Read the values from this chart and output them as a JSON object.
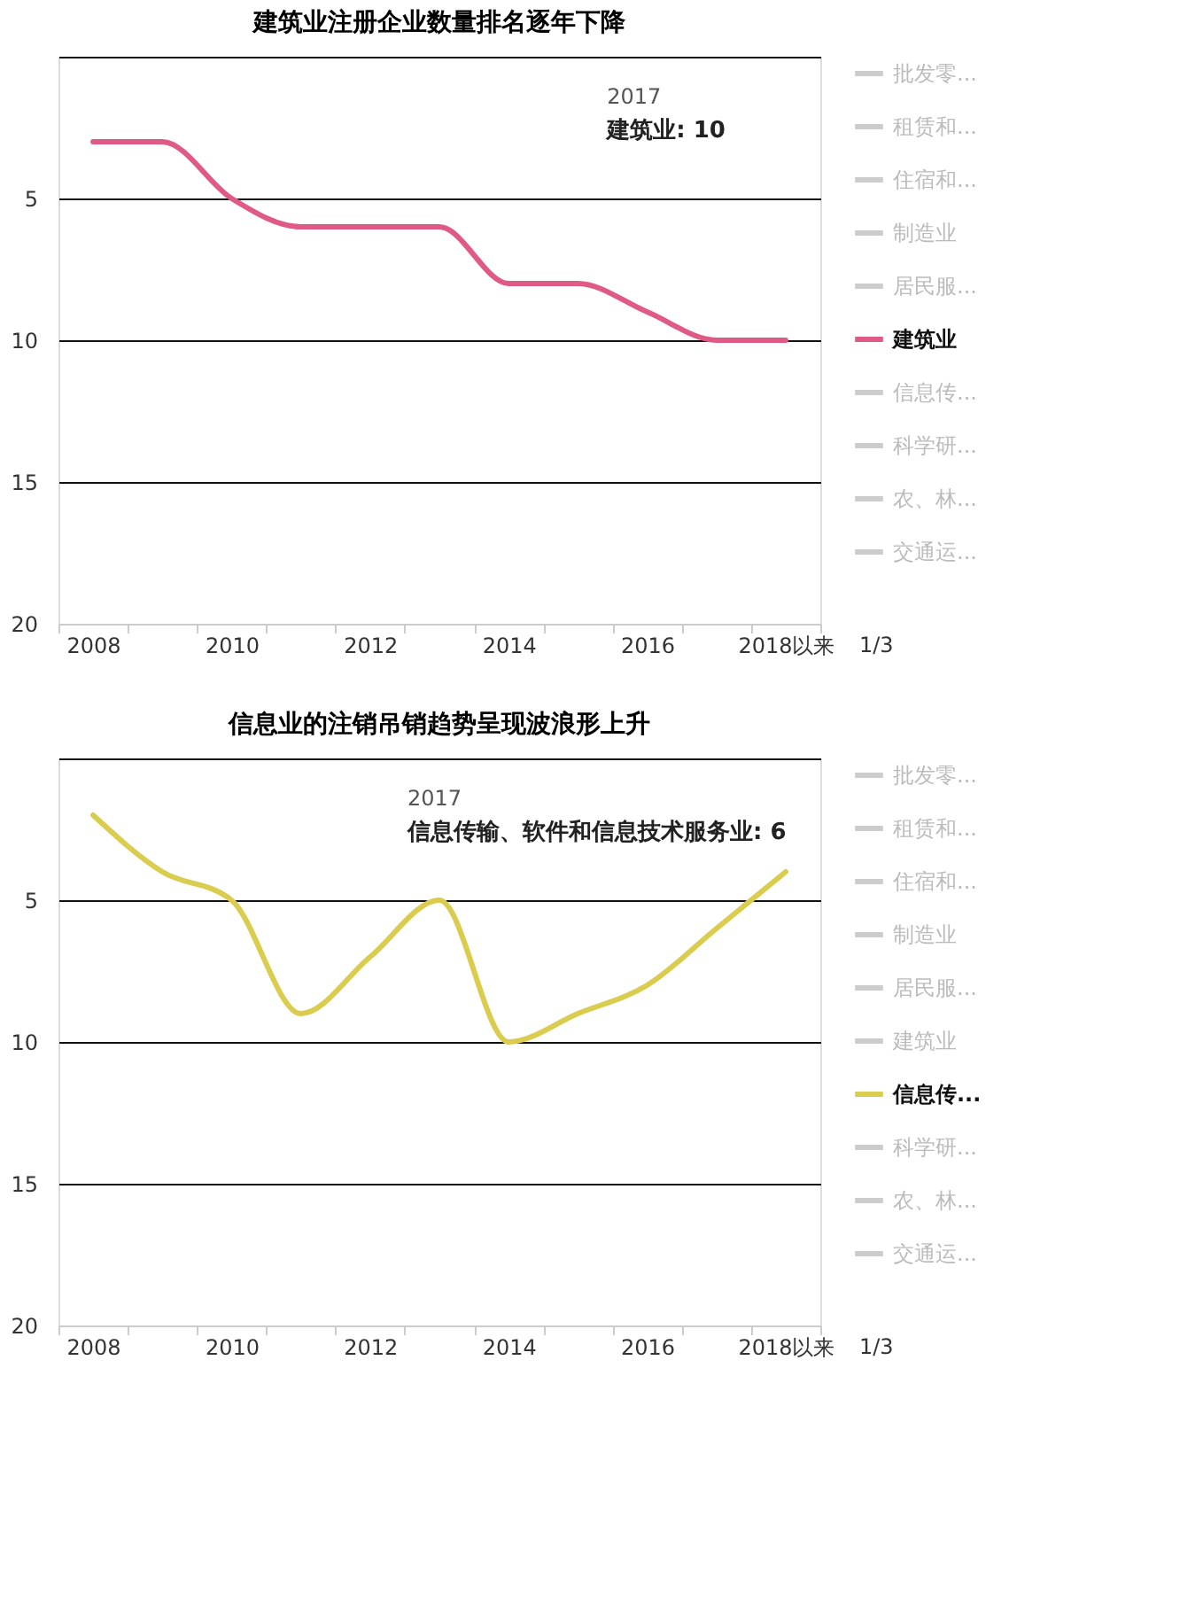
{
  "chart_data": [
    {
      "type": "line",
      "title": "建筑业注册企业数量排名逐年下降",
      "categories": [
        "2008",
        null,
        "2010",
        null,
        "2012",
        null,
        "2014",
        null,
        "2016",
        null,
        "2018以来"
      ],
      "series": [
        {
          "name": "批发零...",
          "color": "#cccccc",
          "values": [
            null,
            null,
            null,
            null,
            null,
            null,
            null,
            null,
            null,
            null,
            null
          ]
        },
        {
          "name": "租赁和...",
          "color": "#cccccc",
          "values": [
            null,
            null,
            null,
            null,
            null,
            null,
            null,
            null,
            null,
            null,
            null
          ]
        },
        {
          "name": "住宿和...",
          "color": "#cccccc",
          "values": [
            null,
            null,
            null,
            null,
            null,
            null,
            null,
            null,
            null,
            null,
            null
          ]
        },
        {
          "name": "制造业",
          "color": "#cccccc",
          "values": [
            null,
            null,
            null,
            null,
            null,
            null,
            null,
            null,
            null,
            null,
            null
          ]
        },
        {
          "name": "居民服...",
          "color": "#cccccc",
          "values": [
            null,
            null,
            null,
            null,
            null,
            null,
            null,
            null,
            null,
            null,
            null
          ]
        },
        {
          "name": "建筑业",
          "color": "#e05a86",
          "values": [
            3,
            3,
            5,
            6,
            6,
            6,
            8,
            8,
            9,
            10,
            10
          ]
        },
        {
          "name": "信息传...",
          "color": "#cccccc",
          "values": [
            null,
            null,
            null,
            null,
            null,
            null,
            null,
            null,
            null,
            null,
            null
          ]
        },
        {
          "name": "科学研...",
          "color": "#cccccc",
          "values": [
            null,
            null,
            null,
            null,
            null,
            null,
            null,
            null,
            null,
            null,
            null
          ]
        },
        {
          "name": "农、林...",
          "color": "#cccccc",
          "values": [
            null,
            null,
            null,
            null,
            null,
            null,
            null,
            null,
            null,
            null,
            null
          ]
        },
        {
          "name": "交通运...",
          "color": "#cccccc",
          "values": [
            null,
            null,
            null,
            null,
            null,
            null,
            null,
            null,
            null,
            null,
            null
          ]
        }
      ],
      "ylim": [
        20,
        0
      ],
      "yticks": [
        {
          "value": 0,
          "label": null
        },
        5,
        10,
        15,
        20
      ],
      "grid": "y",
      "legend": "right",
      "annotations": [
        "2017",
        "建筑业: 10",
        "1/3"
      ]
    },
    {
      "type": "line",
      "title": "信息业的注销吊销趋势呈现波浪形上升",
      "categories": [
        "2008",
        null,
        "2010",
        null,
        "2012",
        null,
        "2014",
        null,
        "2016",
        null,
        "2018以来"
      ],
      "series": [
        {
          "name": "批发零...",
          "color": "#cccccc",
          "values": [
            null,
            null,
            null,
            null,
            null,
            null,
            null,
            null,
            null,
            null,
            null
          ]
        },
        {
          "name": "租赁和...",
          "color": "#cccccc",
          "values": [
            null,
            null,
            null,
            null,
            null,
            null,
            null,
            null,
            null,
            null,
            null
          ]
        },
        {
          "name": "住宿和...",
          "color": "#cccccc",
          "values": [
            null,
            null,
            null,
            null,
            null,
            null,
            null,
            null,
            null,
            null,
            null
          ]
        },
        {
          "name": "制造业",
          "color": "#cccccc",
          "values": [
            null,
            null,
            null,
            null,
            null,
            null,
            null,
            null,
            null,
            null,
            null
          ]
        },
        {
          "name": "居民服...",
          "color": "#cccccc",
          "values": [
            null,
            null,
            null,
            null,
            null,
            null,
            null,
            null,
            null,
            null,
            null
          ]
        },
        {
          "name": "建筑业",
          "color": "#cccccc",
          "values": [
            null,
            null,
            null,
            null,
            null,
            null,
            null,
            null,
            null,
            null,
            null
          ]
        },
        {
          "name": "信息传...",
          "color": "#d9cc4f",
          "values": [
            2,
            4,
            5,
            9,
            7,
            5,
            10,
            9,
            8,
            6,
            4
          ]
        },
        {
          "name": "科学研...",
          "color": "#cccccc",
          "values": [
            null,
            null,
            null,
            null,
            null,
            null,
            null,
            null,
            null,
            null,
            null
          ]
        },
        {
          "name": "农、林...",
          "color": "#cccccc",
          "values": [
            null,
            null,
            null,
            null,
            null,
            null,
            null,
            null,
            null,
            null,
            null
          ]
        },
        {
          "name": "交通运...",
          "color": "#cccccc",
          "values": [
            null,
            null,
            null,
            null,
            null,
            null,
            null,
            null,
            null,
            null,
            null
          ]
        }
      ],
      "ylim": [
        20,
        0
      ],
      "yticks": [
        {
          "value": 0,
          "label": null
        },
        5,
        10,
        15,
        20
      ],
      "grid": "y",
      "legend": "right",
      "annotations": [
        "2017",
        "信息传输、软件和信息技术服务业: 6",
        "1/3"
      ]
    }
  ]
}
